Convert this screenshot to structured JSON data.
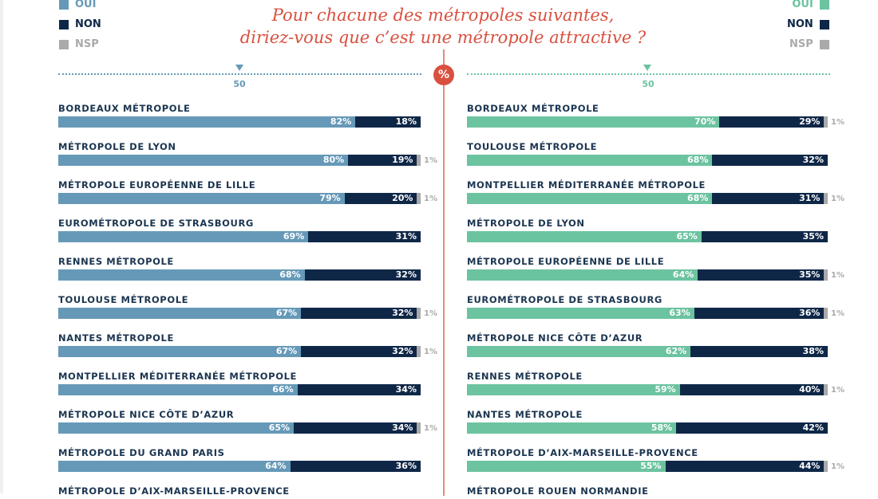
{
  "title_line1": "Pour chacune des métropoles suivantes,",
  "title_line2": "diriez-vous que c’est une métropole attractive ?",
  "percent_symbol": "%",
  "colors": {
    "left_oui": "#6699b8",
    "right_oui": "#6cc3a0",
    "non": "#0f2747",
    "nsp": "#aaaaaa",
    "accent": "#d9503f"
  },
  "legend": {
    "oui": "OUI",
    "non": "NON",
    "nsp": "NSP"
  },
  "chart_data": [
    {
      "type": "bar",
      "stacked": true,
      "orientation": "horizontal",
      "tick_label": "50",
      "xlim": [
        0,
        100
      ],
      "series_keys": [
        "OUI",
        "NON",
        "NSP"
      ],
      "rows": [
        {
          "label": "BORDEAUX MÉTROPOLE",
          "oui": 82,
          "non": 18,
          "nsp": 0
        },
        {
          "label": "MÉTROPOLE DE LYON",
          "oui": 80,
          "non": 19,
          "nsp": 1
        },
        {
          "label": "MÉTROPOLE EUROPÉENNE DE LILLE",
          "oui": 79,
          "non": 20,
          "nsp": 1
        },
        {
          "label": "EUROMÉTROPOLE DE STRASBOURG",
          "oui": 69,
          "non": 31,
          "nsp": 0
        },
        {
          "label": "RENNES MÉTROPOLE",
          "oui": 68,
          "non": 32,
          "nsp": 0
        },
        {
          "label": "TOULOUSE MÉTROPOLE",
          "oui": 67,
          "non": 32,
          "nsp": 1
        },
        {
          "label": "NANTES MÉTROPOLE",
          "oui": 67,
          "non": 32,
          "nsp": 1
        },
        {
          "label": "MONTPELLIER MÉDITERRANÉE MÉTROPOLE",
          "oui": 66,
          "non": 34,
          "nsp": 0
        },
        {
          "label": "MÉTROPOLE NICE CÔTE D’AZUR",
          "oui": 65,
          "non": 34,
          "nsp": 1
        },
        {
          "label": "MÉTROPOLE DU GRAND PARIS",
          "oui": 64,
          "non": 36,
          "nsp": 0
        },
        {
          "label": "MÉTROPOLE D’AIX-MARSEILLE-PROVENCE"
        }
      ]
    },
    {
      "type": "bar",
      "stacked": true,
      "orientation": "horizontal",
      "tick_label": "50",
      "xlim": [
        0,
        100
      ],
      "series_keys": [
        "OUI",
        "NON",
        "NSP"
      ],
      "rows": [
        {
          "label": "BORDEAUX MÉTROPOLE",
          "oui": 70,
          "non": 29,
          "nsp": 1
        },
        {
          "label": "TOULOUSE MÉTROPOLE",
          "oui": 68,
          "non": 32,
          "nsp": 0
        },
        {
          "label": "MONTPELLIER MÉDITERRANÉE MÉTROPOLE",
          "oui": 68,
          "non": 31,
          "nsp": 1
        },
        {
          "label": "MÉTROPOLE DE LYON",
          "oui": 65,
          "non": 35,
          "nsp": 0
        },
        {
          "label": "MÉTROPOLE EUROPÉENNE DE LILLE",
          "oui": 64,
          "non": 35,
          "nsp": 1
        },
        {
          "label": "EUROMÉTROPOLE DE STRASBOURG",
          "oui": 63,
          "non": 36,
          "nsp": 1
        },
        {
          "label": "MÉTROPOLE NICE CÔTE D’AZUR",
          "oui": 62,
          "non": 38,
          "nsp": 0
        },
        {
          "label": "RENNES MÉTROPOLE",
          "oui": 59,
          "non": 40,
          "nsp": 1
        },
        {
          "label": "NANTES MÉTROPOLE",
          "oui": 58,
          "non": 42,
          "nsp": 0
        },
        {
          "label": "MÉTROPOLE D’AIX-MARSEILLE-PROVENCE",
          "oui": 55,
          "non": 44,
          "nsp": 1
        },
        {
          "label": "MÉTROPOLE ROUEN NORMANDIE"
        }
      ]
    }
  ]
}
